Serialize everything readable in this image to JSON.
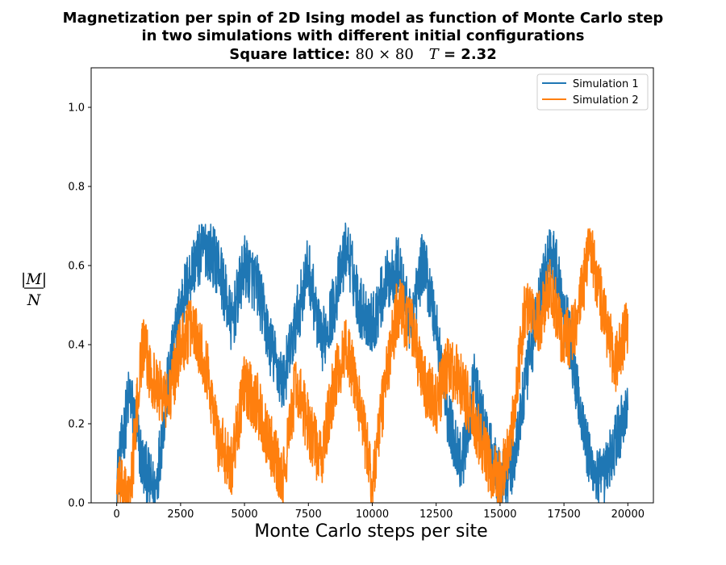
{
  "title_lines": [
    "Magnetization per spin of 2D Ising model as function of Monte Carlo step",
    "in two simulations with different initial configurations"
  ],
  "title_line3": {
    "prefix": "Square lattice:",
    "lattice": "80 × 80",
    "temp_symbol": "T",
    "temp_value": "= 2.32"
  },
  "colors": {
    "series1": "#1f77b4",
    "series2": "#ff7f0e"
  },
  "chart_data": {
    "type": "line",
    "title": "Magnetization per spin of 2D Ising model as function of Monte Carlo step in two simulations with different initial configurations — Square lattice: 80×80  T = 2.32",
    "xlabel": "Monte Carlo steps per site",
    "ylabel": "|M| / N",
    "xlim": [
      -1000,
      21000
    ],
    "ylim": [
      0,
      1.1
    ],
    "xticks": [
      0,
      2500,
      5000,
      7500,
      10000,
      12500,
      15000,
      17500,
      20000
    ],
    "yticks": [
      0.0,
      0.2,
      0.4,
      0.6,
      0.8,
      1.0
    ],
    "grid": false,
    "legend_position": "top-right",
    "x": [
      0,
      500,
      1000,
      1500,
      2000,
      2500,
      3000,
      3500,
      4000,
      4500,
      5000,
      5500,
      6000,
      6500,
      7000,
      7500,
      8000,
      8500,
      9000,
      9500,
      10000,
      10500,
      11000,
      11500,
      12000,
      12500,
      13000,
      13500,
      14000,
      14500,
      15000,
      15500,
      16000,
      16500,
      17000,
      17500,
      18000,
      18500,
      19000,
      19500,
      20000
    ],
    "series": [
      {
        "name": "Simulation 1",
        "values": [
          0.05,
          0.28,
          0.1,
          0.02,
          0.3,
          0.5,
          0.6,
          0.65,
          0.6,
          0.45,
          0.6,
          0.55,
          0.4,
          0.3,
          0.45,
          0.6,
          0.4,
          0.5,
          0.65,
          0.5,
          0.45,
          0.55,
          0.6,
          0.45,
          0.62,
          0.45,
          0.2,
          0.1,
          0.3,
          0.15,
          0.05,
          0.1,
          0.3,
          0.5,
          0.65,
          0.5,
          0.3,
          0.1,
          0.05,
          0.15,
          0.25
        ]
      },
      {
        "name": "Simulation 2",
        "values": [
          0.05,
          0.0,
          0.4,
          0.3,
          0.25,
          0.4,
          0.45,
          0.35,
          0.15,
          0.1,
          0.3,
          0.25,
          0.15,
          0.05,
          0.3,
          0.2,
          0.1,
          0.3,
          0.4,
          0.25,
          0.05,
          0.3,
          0.5,
          0.45,
          0.3,
          0.25,
          0.35,
          0.3,
          0.2,
          0.1,
          0.05,
          0.2,
          0.5,
          0.45,
          0.55,
          0.4,
          0.45,
          0.65,
          0.5,
          0.35,
          0.45
        ]
      }
    ]
  }
}
